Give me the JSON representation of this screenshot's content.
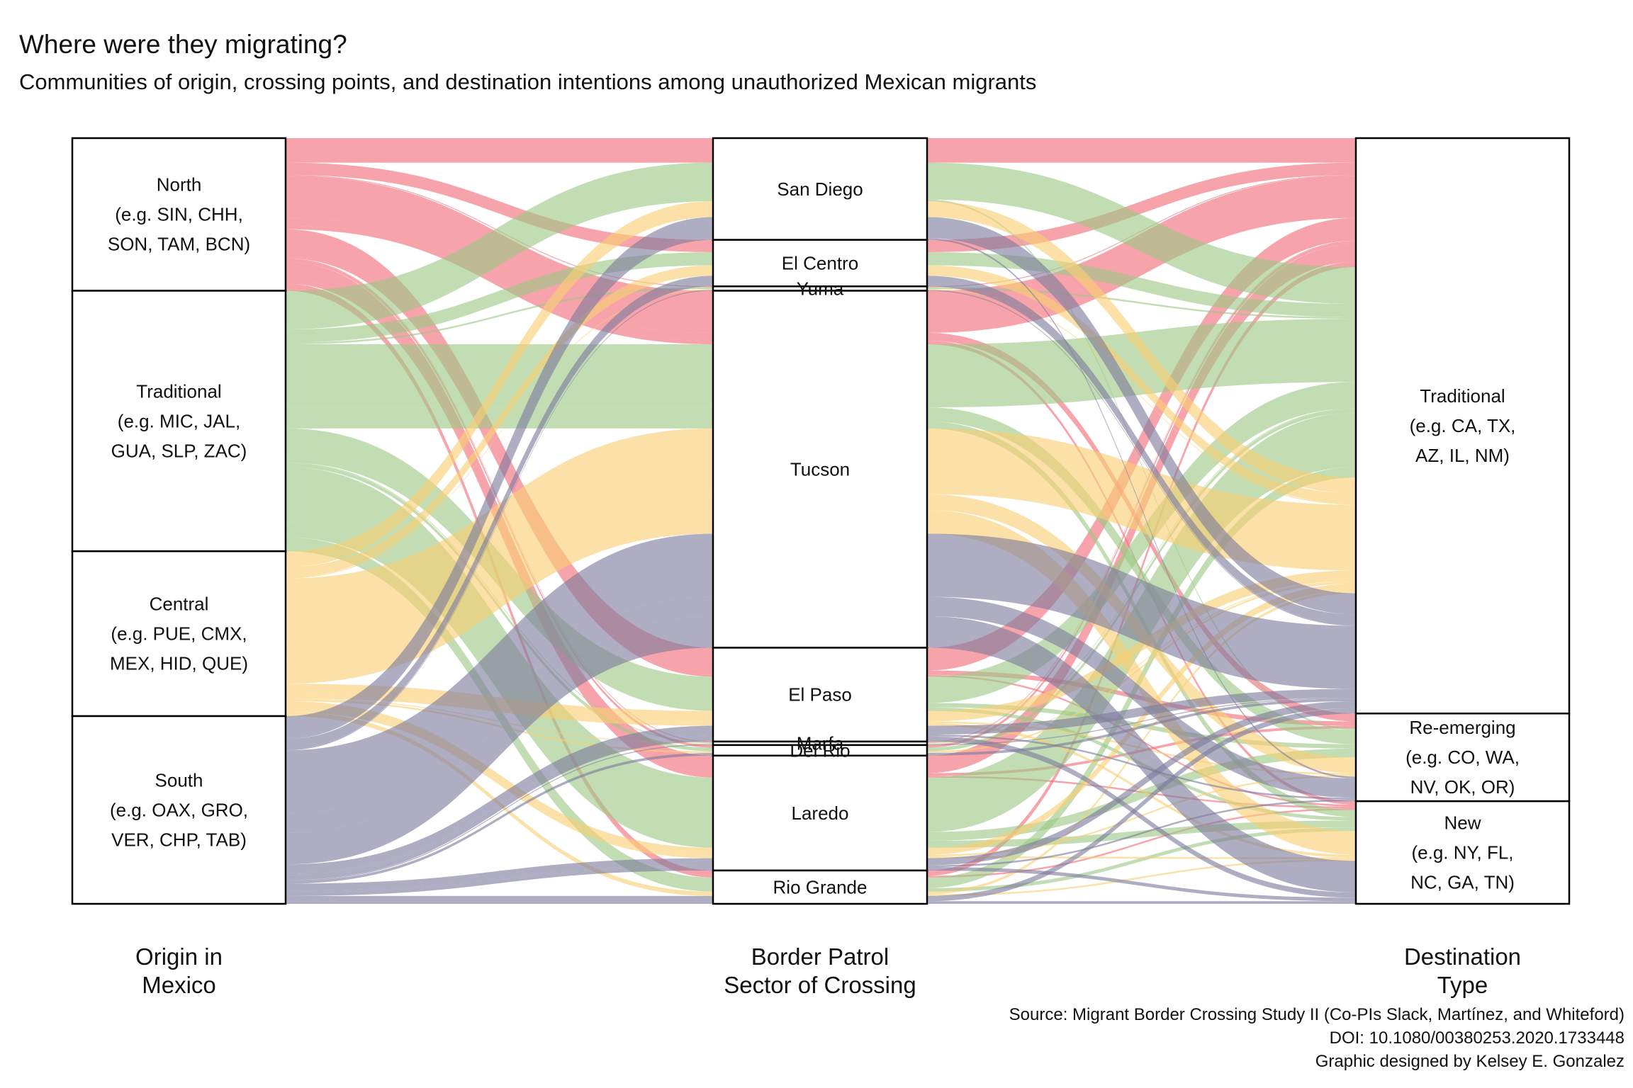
{
  "title": "Where were they migrating?",
  "subtitle": "Communities of origin, crossing points, and destination intentions among unauthorized Mexican migrants",
  "credits": [
    "Source: Migrant Border Crossing Study II (Co-PIs Slack, Martínez, and Whiteford)",
    "DOI: 10.1080/00380253.2020.1733448",
    "Graphic designed by Kelsey E. Gonzalez"
  ],
  "colors": {
    "North": "#f26b77",
    "Traditional": "#9dc884",
    "Central": "#f9cf72",
    "South": "#7c7a9d"
  },
  "chart_data": {
    "type": "alluvial",
    "axes": [
      {
        "key": "origin",
        "label_lines": [
          "Origin in",
          "Mexico"
        ]
      },
      {
        "key": "sector",
        "label_lines": [
          "Border Patrol",
          "Sector of Crossing"
        ]
      },
      {
        "key": "destination",
        "label_lines": [
          "Destination",
          "Type"
        ]
      }
    ],
    "nodes": {
      "origin": [
        {
          "id": "North",
          "label_lines": [
            "North",
            "(e.g. SIN, CHH,",
            "SON, TAM, BCN)"
          ]
        },
        {
          "id": "Traditional",
          "label_lines": [
            "Traditional",
            "(e.g. MIC, JAL,",
            "GUA, SLP, ZAC)"
          ]
        },
        {
          "id": "Central",
          "label_lines": [
            "Central",
            "(e.g. PUE, CMX,",
            "MEX, HID, QUE)"
          ]
        },
        {
          "id": "South",
          "label_lines": [
            "South",
            "(e.g. OAX, GRO,",
            "VER, CHP, TAB)"
          ]
        }
      ],
      "sector": [
        {
          "id": "San Diego",
          "label_lines": [
            "San Diego"
          ]
        },
        {
          "id": "El Centro",
          "label_lines": [
            "El Centro"
          ]
        },
        {
          "id": "Yuma",
          "label_lines": [
            "Yuma"
          ]
        },
        {
          "id": "Tucson",
          "label_lines": [
            "Tucson"
          ]
        },
        {
          "id": "El Paso",
          "label_lines": [
            "El Paso"
          ]
        },
        {
          "id": "Marfa",
          "label_lines": [
            "Marfa"
          ]
        },
        {
          "id": "Del Rio",
          "label_lines": [
            "Del Rio"
          ]
        },
        {
          "id": "Laredo",
          "label_lines": [
            "Laredo"
          ]
        },
        {
          "id": "Rio Grande",
          "label_lines": [
            "Rio Grande"
          ]
        }
      ],
      "destination": [
        {
          "id": "Traditional",
          "label_lines": [
            "Traditional",
            "(e.g. CA, TX,",
            "AZ, IL, NM)"
          ]
        },
        {
          "id": "Re-emerging",
          "label_lines": [
            "Re-emerging",
            "(e.g. CO, WA,",
            "NV, OK, OR)"
          ]
        },
        {
          "id": "New",
          "label_lines": [
            "New",
            "(e.g. NY, FL,",
            "NC, GA, TN)"
          ]
        }
      ]
    },
    "flows": [
      {
        "origin": "North",
        "sector": "San Diego",
        "destination": "Traditional",
        "value": 28
      },
      {
        "origin": "North",
        "sector": "El Centro",
        "destination": "Traditional",
        "value": 14
      },
      {
        "origin": "North",
        "sector": "Yuma",
        "destination": "Traditional",
        "value": 1
      },
      {
        "origin": "North",
        "sector": "Tucson",
        "destination": "Traditional",
        "value": 48
      },
      {
        "origin": "North",
        "sector": "Tucson",
        "destination": "Re-emerging",
        "value": 9
      },
      {
        "origin": "North",
        "sector": "Tucson",
        "destination": "New",
        "value": 4
      },
      {
        "origin": "North",
        "sector": "El Paso",
        "destination": "Traditional",
        "value": 26
      },
      {
        "origin": "North",
        "sector": "El Paso",
        "destination": "Re-emerging",
        "value": 5
      },
      {
        "origin": "North",
        "sector": "El Paso",
        "destination": "New",
        "value": 2
      },
      {
        "origin": "North",
        "sector": "Marfa",
        "destination": "Traditional",
        "value": 1
      },
      {
        "origin": "North",
        "sector": "Del Rio",
        "destination": "Traditional",
        "value": 3
      },
      {
        "origin": "North",
        "sector": "Laredo",
        "destination": "Traditional",
        "value": 20
      },
      {
        "origin": "North",
        "sector": "Laredo",
        "destination": "Re-emerging",
        "value": 3
      },
      {
        "origin": "North",
        "sector": "Laredo",
        "destination": "New",
        "value": 2
      },
      {
        "origin": "North",
        "sector": "Rio Grande",
        "destination": "Traditional",
        "value": 6
      },
      {
        "origin": "North",
        "sector": "Rio Grande",
        "destination": "New",
        "value": 2
      },
      {
        "origin": "Traditional",
        "sector": "San Diego",
        "destination": "Traditional",
        "value": 42
      },
      {
        "origin": "Traditional",
        "sector": "San Diego",
        "destination": "Re-emerging",
        "value": 2
      },
      {
        "origin": "Traditional",
        "sector": "El Centro",
        "destination": "Traditional",
        "value": 15
      },
      {
        "origin": "Traditional",
        "sector": "Yuma",
        "destination": "Traditional",
        "value": 2
      },
      {
        "origin": "Traditional",
        "sector": "Tucson",
        "destination": "Traditional",
        "value": 72
      },
      {
        "origin": "Traditional",
        "sector": "Tucson",
        "destination": "Re-emerging",
        "value": 16
      },
      {
        "origin": "Traditional",
        "sector": "Tucson",
        "destination": "New",
        "value": 8
      },
      {
        "origin": "Traditional",
        "sector": "El Paso",
        "destination": "Traditional",
        "value": 30
      },
      {
        "origin": "Traditional",
        "sector": "El Paso",
        "destination": "Re-emerging",
        "value": 5
      },
      {
        "origin": "Traditional",
        "sector": "El Paso",
        "destination": "New",
        "value": 4
      },
      {
        "origin": "Traditional",
        "sector": "Marfa",
        "destination": "Traditional",
        "value": 1
      },
      {
        "origin": "Traditional",
        "sector": "Del Rio",
        "destination": "Traditional",
        "value": 4
      },
      {
        "origin": "Traditional",
        "sector": "Laredo",
        "destination": "Traditional",
        "value": 62
      },
      {
        "origin": "Traditional",
        "sector": "Laredo",
        "destination": "Re-emerging",
        "value": 10
      },
      {
        "origin": "Traditional",
        "sector": "Laredo",
        "destination": "New",
        "value": 8
      },
      {
        "origin": "Traditional",
        "sector": "Rio Grande",
        "destination": "Traditional",
        "value": 12
      },
      {
        "origin": "Traditional",
        "sector": "Rio Grande",
        "destination": "New",
        "value": 4
      },
      {
        "origin": "Central",
        "sector": "San Diego",
        "destination": "Traditional",
        "value": 18
      },
      {
        "origin": "Central",
        "sector": "El Centro",
        "destination": "Traditional",
        "value": 12
      },
      {
        "origin": "Central",
        "sector": "Yuma",
        "destination": "Traditional",
        "value": 1
      },
      {
        "origin": "Central",
        "sector": "Tucson",
        "destination": "Traditional",
        "value": 75
      },
      {
        "origin": "Central",
        "sector": "Tucson",
        "destination": "Re-emerging",
        "value": 18
      },
      {
        "origin": "Central",
        "sector": "Tucson",
        "destination": "New",
        "value": 27
      },
      {
        "origin": "Central",
        "sector": "El Paso",
        "destination": "Traditional",
        "value": 12
      },
      {
        "origin": "Central",
        "sector": "El Paso",
        "destination": "Re-emerging",
        "value": 2
      },
      {
        "origin": "Central",
        "sector": "El Paso",
        "destination": "New",
        "value": 3
      },
      {
        "origin": "Central",
        "sector": "Marfa",
        "destination": "Traditional",
        "value": 1
      },
      {
        "origin": "Central",
        "sector": "Del Rio",
        "destination": "Traditional",
        "value": 2
      },
      {
        "origin": "Central",
        "sector": "Laredo",
        "destination": "Traditional",
        "value": 8
      },
      {
        "origin": "Central",
        "sector": "Laredo",
        "destination": "Re-emerging",
        "value": 2
      },
      {
        "origin": "Central",
        "sector": "Laredo",
        "destination": "New",
        "value": 2
      },
      {
        "origin": "Central",
        "sector": "Rio Grande",
        "destination": "Traditional",
        "value": 3
      },
      {
        "origin": "Central",
        "sector": "Rio Grande",
        "destination": "New",
        "value": 2
      },
      {
        "origin": "South",
        "sector": "San Diego",
        "destination": "Traditional",
        "value": 24
      },
      {
        "origin": "South",
        "sector": "San Diego",
        "destination": "Re-emerging",
        "value": 2
      },
      {
        "origin": "South",
        "sector": "El Centro",
        "destination": "Traditional",
        "value": 12
      },
      {
        "origin": "South",
        "sector": "Yuma",
        "destination": "Traditional",
        "value": 1
      },
      {
        "origin": "South",
        "sector": "Tucson",
        "destination": "Traditional",
        "value": 72
      },
      {
        "origin": "South",
        "sector": "Tucson",
        "destination": "Re-emerging",
        "value": 22
      },
      {
        "origin": "South",
        "sector": "Tucson",
        "destination": "New",
        "value": 36
      },
      {
        "origin": "South",
        "sector": "El Paso",
        "destination": "Traditional",
        "value": 10
      },
      {
        "origin": "South",
        "sector": "El Paso",
        "destination": "Re-emerging",
        "value": 2
      },
      {
        "origin": "South",
        "sector": "El Paso",
        "destination": "New",
        "value": 6
      },
      {
        "origin": "South",
        "sector": "Marfa",
        "destination": "Traditional",
        "value": 1
      },
      {
        "origin": "South",
        "sector": "Del Rio",
        "destination": "Traditional",
        "value": 3
      },
      {
        "origin": "South",
        "sector": "Laredo",
        "destination": "Traditional",
        "value": 8
      },
      {
        "origin": "South",
        "sector": "Laredo",
        "destination": "Re-emerging",
        "value": 2
      },
      {
        "origin": "South",
        "sector": "Laredo",
        "destination": "New",
        "value": 4
      },
      {
        "origin": "South",
        "sector": "Rio Grande",
        "destination": "Traditional",
        "value": 6
      },
      {
        "origin": "South",
        "sector": "Rio Grande",
        "destination": "New",
        "value": 3
      }
    ]
  }
}
